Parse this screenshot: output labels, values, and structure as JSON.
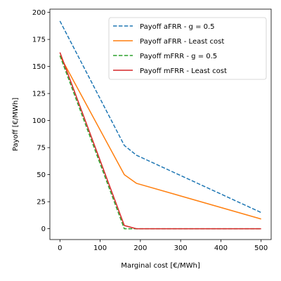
{
  "chart_data": {
    "type": "line",
    "xlabel": "Marginal cost [€/MWh]",
    "ylabel": "Payoff [€/MWh]",
    "xlim": [
      -25,
      525
    ],
    "ylim": [
      -10,
      203
    ],
    "xticks": [
      0,
      100,
      200,
      300,
      400,
      500
    ],
    "yticks": [
      0,
      25,
      50,
      75,
      100,
      125,
      150,
      175,
      200
    ],
    "grid": false,
    "legend_position": "top-right",
    "series": [
      {
        "name": "Payoff aFRR - g = 0.5",
        "color": "#1f77b4",
        "style": "dashed",
        "x": [
          0,
          160,
          190,
          500
        ],
        "y": [
          192,
          77,
          68,
          15
        ]
      },
      {
        "name": "Payoff aFRR - Least cost",
        "color": "#ff7f0e",
        "style": "solid",
        "x": [
          0,
          160,
          190,
          500
        ],
        "y": [
          160,
          50,
          42,
          9
        ]
      },
      {
        "name": "Payoff mFRR - g = 0.5",
        "color": "#2ca02c",
        "style": "dashed",
        "x": [
          0,
          160,
          180,
          500
        ],
        "y": [
          160,
          0,
          0,
          0
        ]
      },
      {
        "name": "Payoff mFRR - Least cost",
        "color": "#d62728",
        "style": "solid",
        "x": [
          0,
          160,
          190,
          500
        ],
        "y": [
          163,
          3,
          0,
          0
        ]
      }
    ]
  }
}
